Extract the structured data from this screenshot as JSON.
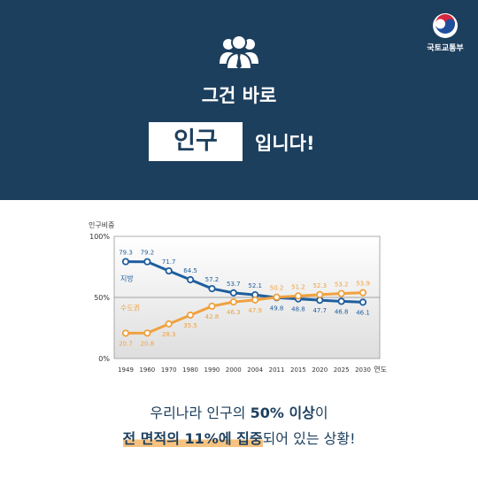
{
  "ministry": {
    "name": "국토교통부"
  },
  "headline": {
    "line1": "그건 바로",
    "highlight": "인구",
    "rest": "입니다!"
  },
  "caption": {
    "line1_prefix": "우리나라 인구의 ",
    "line1_bold": "50% 이상",
    "line1_suffix": "이",
    "line2_highlight": "전 면적의 11%에 집중",
    "line2_suffix": "되어 있는 상황!"
  },
  "colors": {
    "banner": "#1d3f5e",
    "region": "#1f5e9e",
    "capital": "#f0a13f"
  },
  "chart_data": {
    "type": "line",
    "ylabel": "인구비중",
    "xlabel": "연도",
    "x": [
      "1949",
      "1960",
      "1970",
      "1980",
      "1990",
      "2000",
      "2004",
      "2011",
      "2015",
      "2020",
      "2025",
      "2030"
    ],
    "yticks": [
      "100%",
      "50%",
      "0%"
    ],
    "ylim": [
      0,
      100
    ],
    "grid": false,
    "series": [
      {
        "name": "지방",
        "color": "#1f5e9e",
        "values": [
          79.3,
          79.2,
          71.7,
          64.5,
          57.2,
          53.7,
          52.1,
          49.8,
          48.8,
          47.7,
          46.8,
          46.1
        ]
      },
      {
        "name": "수도권",
        "color": "#f0a13f",
        "values": [
          20.7,
          20.8,
          28.3,
          35.5,
          42.8,
          46.3,
          47.9,
          50.2,
          51.2,
          52.3,
          53.2,
          53.9
        ]
      }
    ]
  }
}
